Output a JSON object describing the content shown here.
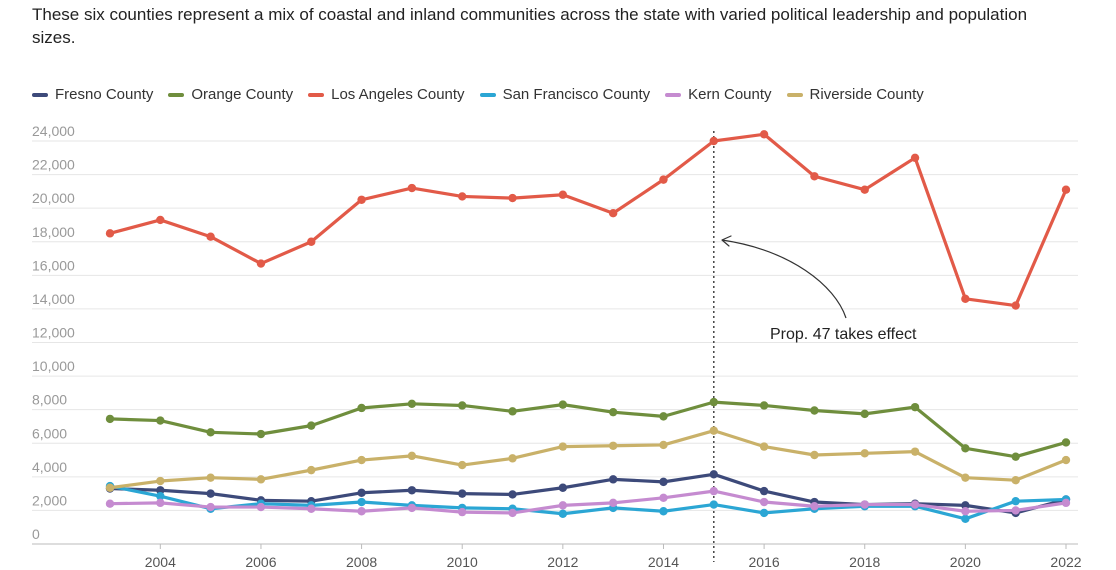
{
  "chart_data": {
    "type": "line",
    "title": "",
    "subtitle": "These six counties represent a mix of coastal and inland communities across the state with varied political leadership and population sizes.",
    "xlabel": "",
    "ylabel": "",
    "x": [
      2003,
      2004,
      2005,
      2006,
      2007,
      2008,
      2009,
      2010,
      2011,
      2012,
      2013,
      2014,
      2015,
      2016,
      2017,
      2018,
      2019,
      2020,
      2021,
      2022
    ],
    "x_ticks": [
      "2004",
      "2006",
      "2008",
      "2010",
      "2012",
      "2014",
      "2016",
      "2018",
      "2020",
      "2022"
    ],
    "y_ticks": [
      "0",
      "2,000",
      "4,000",
      "6,000",
      "8,000",
      "10,000",
      "12,000",
      "14,000",
      "16,000",
      "18,000",
      "20,000",
      "22,000",
      "24,000"
    ],
    "ylim": [
      0,
      24000
    ],
    "grid": "horizontal",
    "legend_position": "top-left",
    "series": [
      {
        "name": "Fresno County",
        "color": "#3d4a7a",
        "values": [
          3300,
          3200,
          3000,
          2600,
          2550,
          3050,
          3200,
          3000,
          2950,
          3350,
          3850,
          3700,
          4150,
          3150,
          2500,
          2350,
          2400,
          2300,
          1850,
          2650
        ]
      },
      {
        "name": "Orange County",
        "color": "#6f8e3d",
        "values": [
          7450,
          7350,
          6650,
          6550,
          7050,
          8100,
          8350,
          8250,
          7900,
          8300,
          7850,
          7600,
          8450,
          8250,
          7950,
          7750,
          8150,
          5700,
          5200,
          6050
        ]
      },
      {
        "name": "Los Angeles County",
        "color": "#e25a48",
        "values": [
          18500,
          19300,
          18300,
          16700,
          18000,
          20500,
          21200,
          20700,
          20600,
          20800,
          19700,
          21700,
          24000,
          24400,
          21900,
          21100,
          23000,
          14600,
          14200,
          21100
        ]
      },
      {
        "name": "San Francisco County",
        "color": "#2ba6d4",
        "values": [
          3450,
          2850,
          2100,
          2400,
          2300,
          2500,
          2300,
          2150,
          2100,
          1800,
          2150,
          1950,
          2350,
          1850,
          2100,
          2250,
          2250,
          1500,
          2550,
          2650
        ]
      },
      {
        "name": "Kern County",
        "color": "#c58bd0",
        "values": [
          2400,
          2450,
          2200,
          2200,
          2100,
          1950,
          2150,
          1900,
          1850,
          2300,
          2450,
          2750,
          3150,
          2500,
          2250,
          2350,
          2350,
          1950,
          2000,
          2450
        ]
      },
      {
        "name": "Riverside County",
        "color": "#c9b169",
        "values": [
          3350,
          3750,
          3950,
          3850,
          4400,
          5000,
          5250,
          4700,
          5100,
          5800,
          5850,
          5900,
          6750,
          5800,
          5300,
          5400,
          5500,
          3950,
          3800,
          5000
        ]
      }
    ],
    "annotations": [
      {
        "text": "Prop. 47 takes effect",
        "x": 2015,
        "type": "vertical-line"
      }
    ]
  }
}
